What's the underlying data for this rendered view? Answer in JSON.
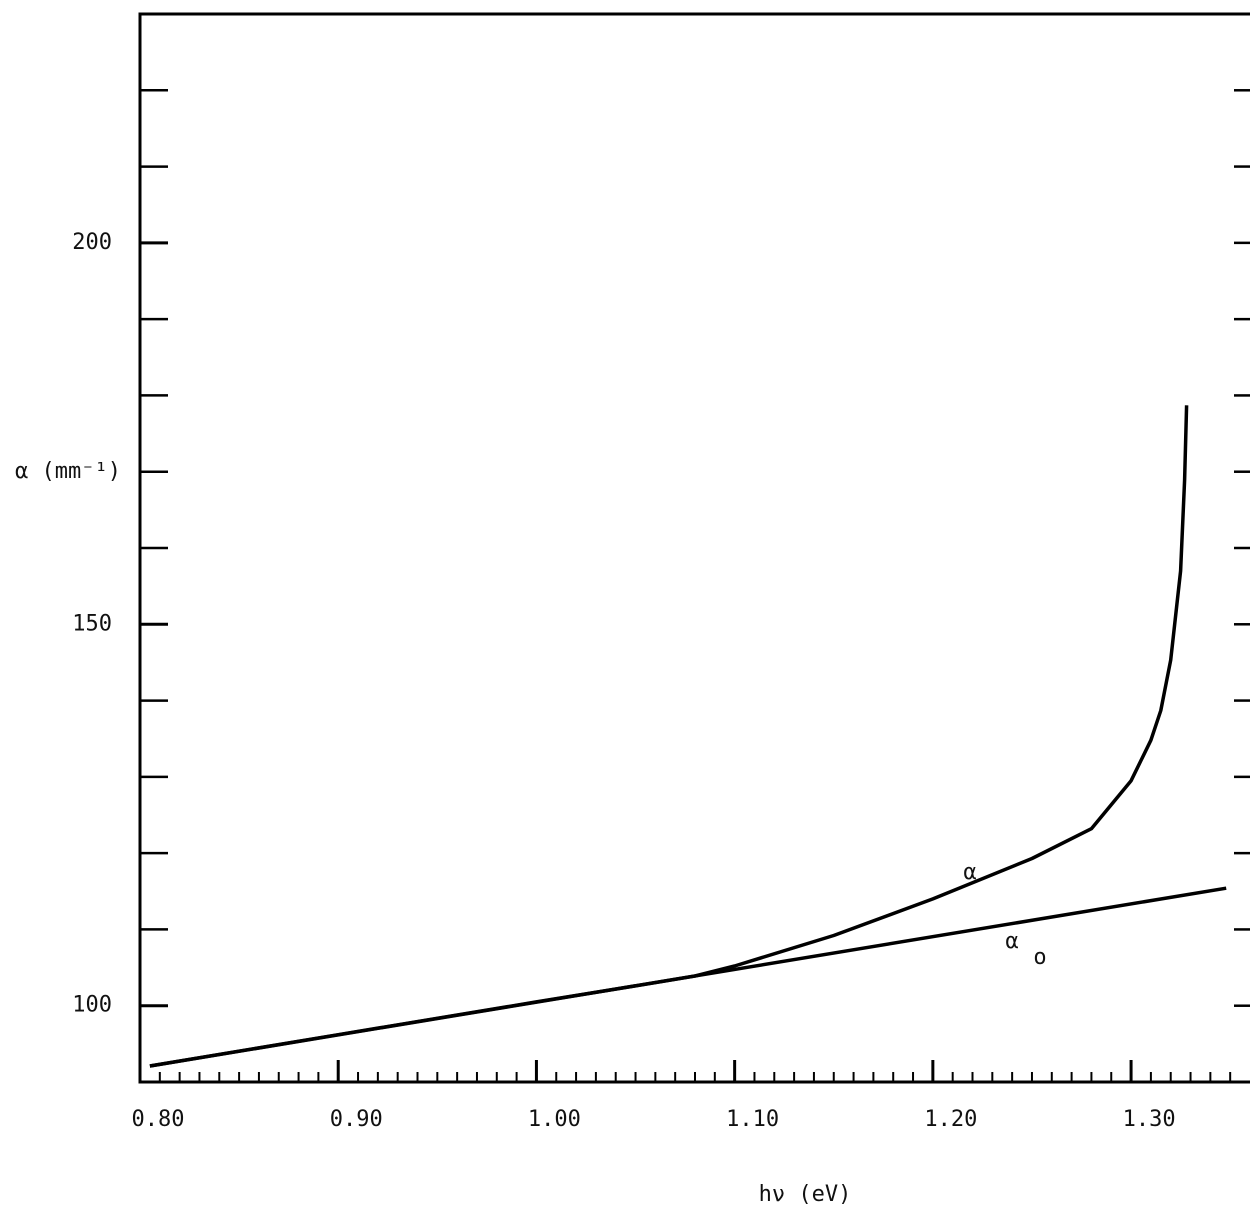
{
  "chart_data": {
    "type": "line",
    "xlabel": "hν (eV)",
    "ylabel": "α (mm⁻¹)",
    "annotations": [
      "α",
      "α",
      "o"
    ],
    "xlim": [
      0.8,
      1.36
    ],
    "ylim": [
      90,
      230
    ],
    "xticks": [
      {
        "value": 0.8,
        "label": "0.80"
      },
      {
        "value": 0.9,
        "label": "0.90"
      },
      {
        "value": 1.0,
        "label": "1.00"
      },
      {
        "value": 1.1,
        "label": "1.10"
      },
      {
        "value": 1.2,
        "label": "1.20"
      },
      {
        "value": 1.3,
        "label": "1.30"
      }
    ],
    "yticks": [
      100,
      150,
      200
    ],
    "xminor_step": 0.01,
    "yminor_step": 10,
    "series": [
      {
        "color": "#000000",
        "x": [
          0.805,
          0.9,
          1.0,
          1.05,
          1.08,
          1.1,
          1.15,
          1.2,
          1.25,
          1.28,
          1.3,
          1.31,
          1.315,
          1.32,
          1.325,
          1.327,
          1.328
        ],
        "values": [
          92.1,
          96.2,
          100.5,
          102.6,
          103.9,
          105.2,
          109.2,
          114.0,
          119.3,
          123.2,
          129.5,
          134.8,
          138.7,
          145.3,
          157.0,
          168.9,
          178.7
        ]
      },
      {
        "color": "#000000",
        "x": [
          0.805,
          1.348
        ],
        "values": [
          92.1,
          115.4
        ]
      }
    ]
  }
}
